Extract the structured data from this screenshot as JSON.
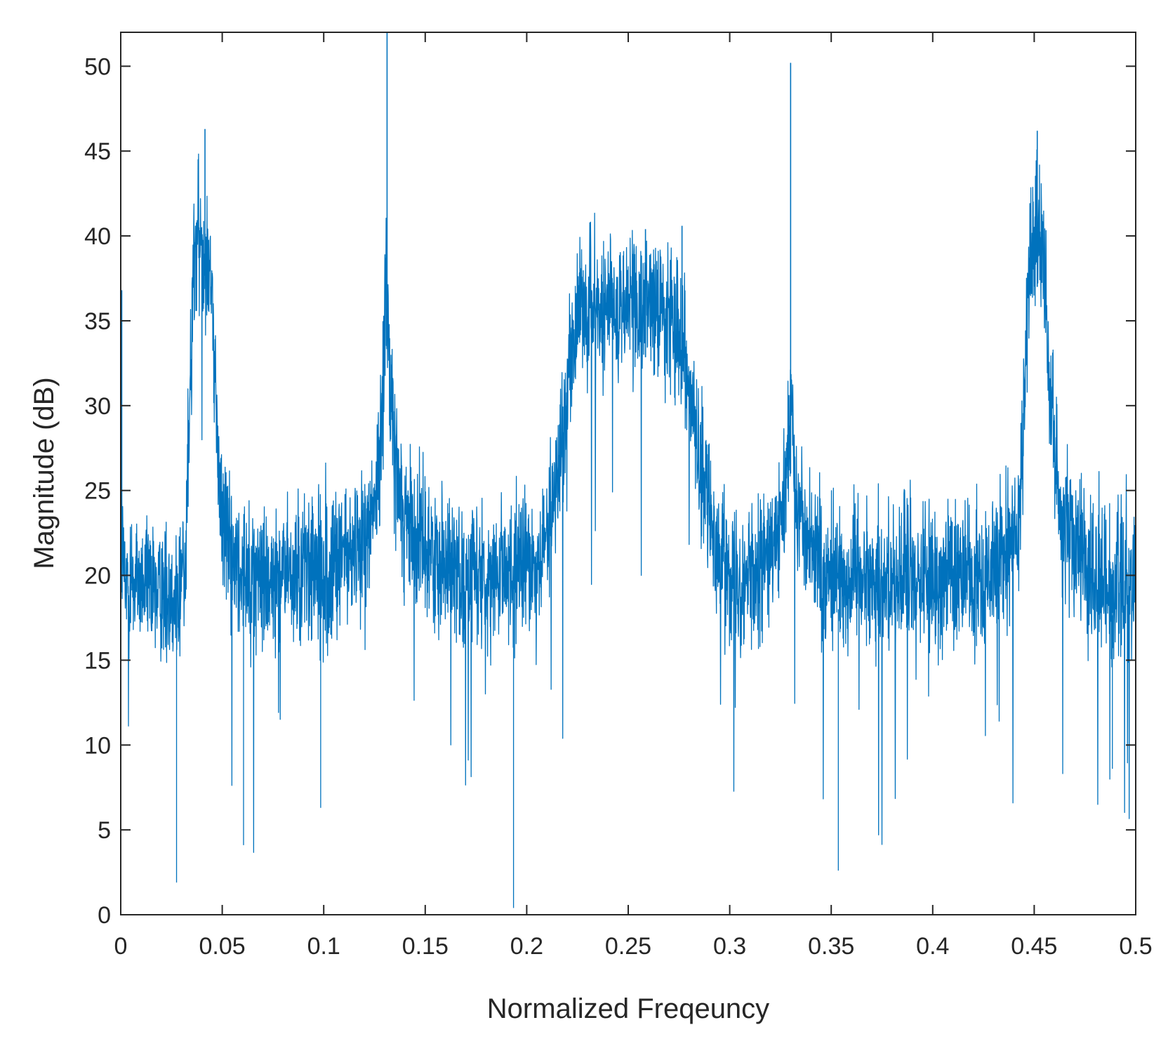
{
  "chart_data": {
    "type": "line",
    "title": "",
    "xlabel": "Normalized Freqeuncy",
    "ylabel": "Magnitude (dB)",
    "xlim": [
      0,
      0.5
    ],
    "ylim": [
      0,
      52
    ],
    "grid": false,
    "legend": "none",
    "x_ticks": [
      {
        "value": 0,
        "label": "0"
      },
      {
        "value": 0.05,
        "label": "0.05"
      },
      {
        "value": 0.1,
        "label": "0.1"
      },
      {
        "value": 0.15,
        "label": "0.15"
      },
      {
        "value": 0.2,
        "label": "0.2"
      },
      {
        "value": 0.25,
        "label": "0.25"
      },
      {
        "value": 0.3,
        "label": "0.3"
      },
      {
        "value": 0.35,
        "label": "0.35"
      },
      {
        "value": 0.4,
        "label": "0.4"
      },
      {
        "value": 0.45,
        "label": "0.45"
      },
      {
        "value": 0.5,
        "label": "0.5"
      }
    ],
    "y_ticks": [
      {
        "value": 0,
        "label": "0"
      },
      {
        "value": 5,
        "label": "5"
      },
      {
        "value": 10,
        "label": "10"
      },
      {
        "value": 15,
        "label": "15"
      },
      {
        "value": 20,
        "label": "20"
      },
      {
        "value": 25,
        "label": "25"
      },
      {
        "value": 30,
        "label": "30"
      },
      {
        "value": 35,
        "label": "35"
      },
      {
        "value": 40,
        "label": "40"
      },
      {
        "value": 45,
        "label": "45"
      },
      {
        "value": 50,
        "label": "50"
      }
    ],
    "series": [
      {
        "color": "#0072bd",
        "x": [
          0,
          0.0005,
          0.002,
          0.005,
          0.01,
          0.015,
          0.02,
          0.025,
          0.028,
          0.03,
          0.032,
          0.034,
          0.036,
          0.038,
          0.04,
          0.042,
          0.044,
          0.046,
          0.048,
          0.05,
          0.053,
          0.056,
          0.06,
          0.065,
          0.07,
          0.075,
          0.08,
          0.085,
          0.09,
          0.095,
          0.1,
          0.105,
          0.11,
          0.115,
          0.12,
          0.124,
          0.127,
          0.129,
          0.1305,
          0.1315,
          0.133,
          0.135,
          0.138,
          0.142,
          0.146,
          0.15,
          0.155,
          0.16,
          0.165,
          0.17,
          0.175,
          0.18,
          0.185,
          0.19,
          0.195,
          0.2,
          0.205,
          0.21,
          0.213,
          0.216,
          0.219,
          0.222,
          0.225,
          0.23,
          0.235,
          0.24,
          0.245,
          0.25,
          0.255,
          0.26,
          0.265,
          0.27,
          0.275,
          0.278,
          0.281,
          0.284,
          0.288,
          0.292,
          0.296,
          0.3,
          0.305,
          0.31,
          0.315,
          0.32,
          0.324,
          0.327,
          0.3295,
          0.3305,
          0.332,
          0.335,
          0.338,
          0.342,
          0.346,
          0.35,
          0.355,
          0.36,
          0.365,
          0.37,
          0.375,
          0.38,
          0.385,
          0.39,
          0.395,
          0.4,
          0.405,
          0.41,
          0.415,
          0.42,
          0.425,
          0.43,
          0.435,
          0.44,
          0.443,
          0.445,
          0.447,
          0.449,
          0.451,
          0.453,
          0.455,
          0.457,
          0.46,
          0.463,
          0.466,
          0.47,
          0.475,
          0.48,
          0.485,
          0.49,
          0.495,
          0.5
        ],
        "values": [
          36.5,
          22,
          19.5,
          20,
          19.5,
          19,
          19.5,
          19,
          18.5,
          19.5,
          22,
          30,
          38,
          40,
          39.5,
          40,
          38.5,
          33,
          27,
          24,
          22,
          21,
          20.5,
          20,
          20,
          19.5,
          20,
          20,
          20.5,
          20,
          20,
          20.5,
          21,
          21.5,
          22.5,
          24,
          26,
          30,
          38,
          36,
          30,
          27,
          24.5,
          23,
          22,
          21.5,
          21,
          20.5,
          20.5,
          20,
          20,
          20,
          20,
          20,
          20.5,
          20.5,
          21,
          22,
          24,
          27,
          30,
          33,
          35,
          35.5,
          36,
          36,
          36,
          36,
          35.5,
          36,
          35.5,
          35.5,
          35,
          33,
          30,
          27,
          25,
          23,
          21.5,
          20.5,
          20,
          20,
          20.5,
          21,
          22,
          24,
          28,
          30,
          25,
          23,
          22,
          21,
          20.5,
          20,
          20,
          20,
          20,
          19.5,
          20,
          20,
          20,
          20,
          19.5,
          20,
          20,
          20,
          20,
          20,
          20,
          20.5,
          21,
          22,
          24,
          30,
          37,
          40,
          40,
          40,
          38,
          33,
          27,
          24,
          22.5,
          21.5,
          20.5,
          20,
          20,
          19.5,
          19.5,
          19.5
        ]
      }
    ]
  }
}
